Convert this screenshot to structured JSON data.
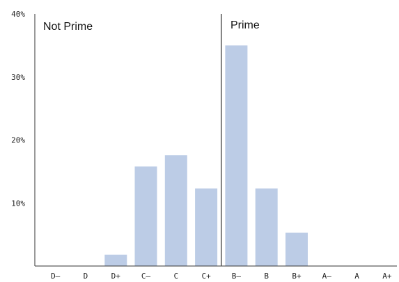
{
  "chart_data": {
    "type": "bar",
    "categories": [
      "D–",
      "D",
      "D+",
      "C–",
      "C",
      "C+",
      "B–",
      "B",
      "B+",
      "A–",
      "A",
      "A+"
    ],
    "values": [
      0,
      0,
      1.8,
      15.8,
      17.6,
      12.3,
      35.0,
      12.3,
      5.3,
      0,
      0,
      0
    ],
    "y_ticks": [
      "10%",
      "20%",
      "30%",
      "40%"
    ],
    "y_tick_values": [
      10,
      20,
      30,
      40
    ],
    "ylim": [
      0,
      40
    ],
    "grid": false,
    "divider_before_category": "B–",
    "annotations": [
      {
        "text": "Not Prime",
        "side": "left"
      },
      {
        "text": "Prime",
        "side": "right"
      }
    ],
    "colors": {
      "bar": "#bccce6",
      "axis": "#333333",
      "divider": "#555555"
    }
  }
}
